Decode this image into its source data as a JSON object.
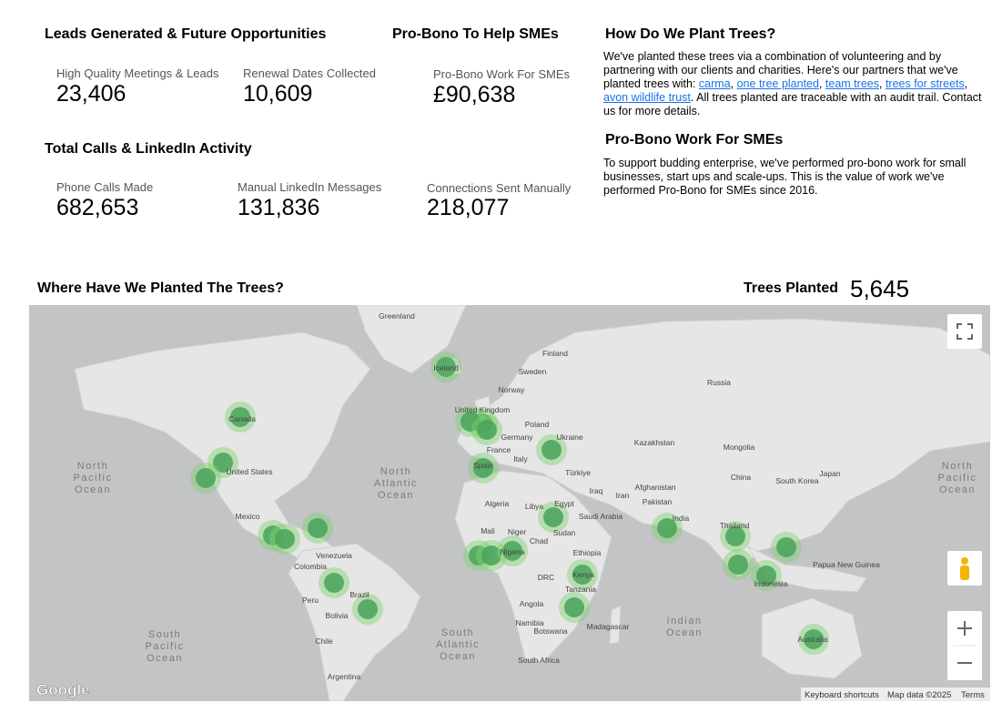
{
  "leads": {
    "title": "Leads Generated & Future Opportunities",
    "kpis": [
      {
        "label": "High Quality Meetings & Leads",
        "value": "23,406"
      },
      {
        "label": "Renewal Dates Collected",
        "value": "10,609"
      }
    ]
  },
  "probono_kpi": {
    "title": "Pro-Bono To Help SMEs",
    "kpis": [
      {
        "label": "Pro-Bono Work For SMEs",
        "value": "£90,638"
      }
    ]
  },
  "calls": {
    "title": "Total Calls & LinkedIn Activity",
    "kpis": [
      {
        "label": "Phone Calls Made",
        "value": "682,653"
      },
      {
        "label": "Manual LinkedIn Messages",
        "value": "131,836"
      },
      {
        "label": "Connections Sent Manually",
        "value": "218,077"
      }
    ]
  },
  "plant": {
    "title": "How Do We Plant Trees?",
    "parts": [
      "We've planted these trees via a combination of volunteering and by partnering with our clients and charities. Here's our partners that we've planted trees with: ",
      "carma",
      ", ",
      "one tree planted",
      ",  ",
      "team trees",
      ", ",
      "trees for streets",
      ", ",
      "avon wildlife trust",
      ". All trees planted are traceable with an audit trail. Contact us for more details."
    ]
  },
  "probono": {
    "title": "Pro-Bono Work For SMEs",
    "text": "To support budding enterprise, we've performed pro-bono work for small businesses, start ups and scale-ups. This is the value of work we've performed Pro-Bono for SMEs since 2016."
  },
  "map": {
    "title": "Where Have We Planted The Trees?",
    "trees_label": "Trees Planted",
    "trees_value": "5,645",
    "labels": [
      "Greenland",
      "Finland",
      "Sweden",
      "Norway",
      "Russia",
      "Poland",
      "Ukraine",
      "Germany",
      "France",
      "Italy",
      "Türkiye",
      "Kazakhstan",
      "Mongolia",
      "China",
      "Japan",
      "South Korea",
      "Iraq",
      "Iran",
      "Afghanistan",
      "Pakistan",
      "India",
      "Saudi Arabia",
      "Egypt",
      "Libya",
      "Algeria",
      "Mali",
      "Niger",
      "Chad",
      "Sudan",
      "Ethiopia",
      "DRC",
      "Angola",
      "Namibia",
      "Botswana",
      "Madagascar",
      "South Africa",
      "Papua New Guinea",
      "Mexico",
      "Venezuela",
      "Colombia",
      "Peru",
      "Bolivia",
      "Chile",
      "Argentina",
      "United States",
      "Canada",
      "Spain",
      "Nigeria",
      "Kenya",
      "Tanzania",
      "Thailand",
      "Indonesia",
      "Australia",
      "Brazil",
      "Iceland",
      "United Kingdom"
    ],
    "oceans": [
      "North Pacific Ocean",
      "North Atlantic Ocean",
      "North Pacific Ocean",
      "South Pacific Ocean",
      "South Atlantic Ocean",
      "Indian Ocean"
    ],
    "google": "Google",
    "footer": [
      "Keyboard shortcuts",
      "Map data ©2025",
      "Terms"
    ]
  }
}
